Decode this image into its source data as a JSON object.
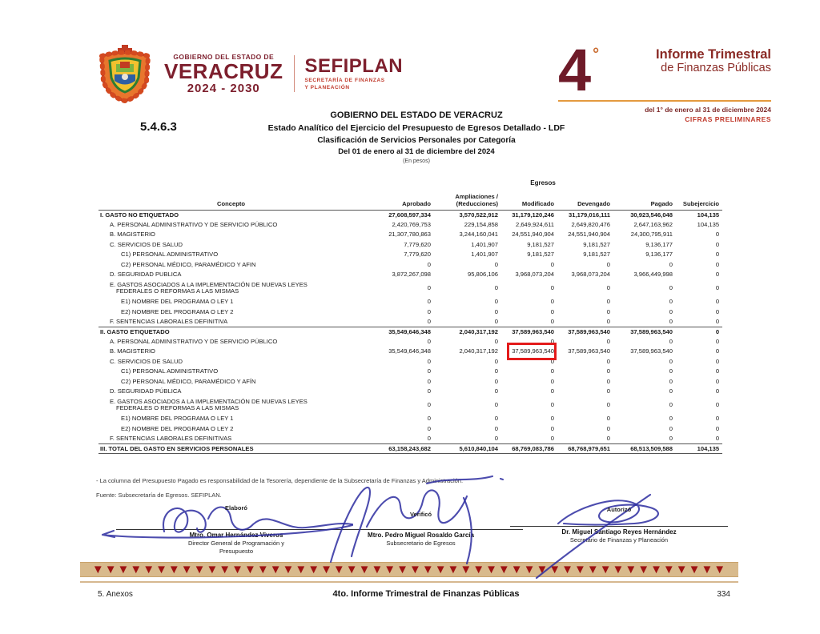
{
  "header": {
    "logo": {
      "gobierno_line": "GOBIERNO DEL ESTADO DE",
      "state_name": "VERACRUZ",
      "period": "2024 - 2030",
      "agency": "SEFIPLAN",
      "agency_sub1": "SECRETARÍA DE FINANZAS",
      "agency_sub2": "Y PLANEACIÓN"
    },
    "report_badge": {
      "number": "4",
      "degree": "°",
      "title_line1": "Informe Trimestral",
      "title_line2": "de Finanzas Públicas",
      "period": "del 1° de enero al 31 de diciembre 2024",
      "note": "CIFRAS PRELIMINARES"
    }
  },
  "title_block": {
    "section_number": "5.4.6.3",
    "line1": "GOBIERNO DEL ESTADO DE VERACRUZ",
    "line2": "Estado Analítico del Ejercicio del Presupuesto de Egresos Detallado - LDF",
    "line3": "Clasificación de Servicios Personales por Categoría",
    "line4": "Del 01 de enero al 31 de diciembre del 2024",
    "line5": "(En pesos)"
  },
  "table": {
    "group_header": "Egresos",
    "columns": [
      "Concepto",
      "Aprobado",
      "Ampliaciones /\n(Reducciones)",
      "Modificado",
      "Devengado",
      "Pagado",
      "Subejercicio"
    ],
    "rows": [
      {
        "label": "I. GASTO NO ETIQUETADO",
        "indent": 0,
        "bold": true,
        "values": [
          "27,608,597,334",
          "3,570,522,912",
          "31,179,120,246",
          "31,179,016,111",
          "30,923,546,048",
          "104,135"
        ]
      },
      {
        "label": "A. PERSONAL ADMINISTRATIVO Y DE SERVICIO PÚBLICO",
        "indent": 1,
        "values": [
          "2,420,769,753",
          "229,154,858",
          "2,649,924,611",
          "2,649,820,476",
          "2,647,163,962",
          "104,135"
        ]
      },
      {
        "label": "B. MAGISTERIO",
        "indent": 1,
        "values": [
          "21,307,780,863",
          "3,244,160,041",
          "24,551,940,904",
          "24,551,940,904",
          "24,300,795,911",
          "0"
        ]
      },
      {
        "label": "C. SERVICIOS DE SALUD",
        "indent": 1,
        "values": [
          "7,779,620",
          "1,401,907",
          "9,181,527",
          "9,181,527",
          "9,136,177",
          "0"
        ]
      },
      {
        "label": "C1) PERSONAL ADMINISTRATIVO",
        "indent": 2,
        "values": [
          "7,779,620",
          "1,401,907",
          "9,181,527",
          "9,181,527",
          "9,136,177",
          "0"
        ]
      },
      {
        "label": "C2) PERSONAL MÉDICO, PARAMÉDICO Y AFIN",
        "indent": 2,
        "values": [
          "0",
          "0",
          "0",
          "0",
          "0",
          "0"
        ]
      },
      {
        "label": "D. SEGURIDAD PUBLICA",
        "indent": 1,
        "values": [
          "3,872,267,098",
          "95,806,106",
          "3,968,073,204",
          "3,968,073,204",
          "3,966,449,998",
          "0"
        ]
      },
      {
        "label": "E. GASTOS ASOCIADOS A LA IMPLEMENTACIÓN DE NUEVAS LEYES",
        "label2": "FEDERALES O REFORMAS A LAS MISMAS",
        "indent": 1,
        "values": [
          "0",
          "0",
          "0",
          "0",
          "0",
          "0"
        ]
      },
      {
        "label": "E1) NOMBRE DEL PROGRAMA O LEY 1",
        "indent": 2,
        "values": [
          "0",
          "0",
          "0",
          "0",
          "0",
          "0"
        ]
      },
      {
        "label": "E2) NOMBRE DEL PROGRAMA O LEY 2",
        "indent": 2,
        "values": [
          "0",
          "0",
          "0",
          "0",
          "0",
          "0"
        ]
      },
      {
        "label": "F. SENTENCIAS LABORALES DEFINITIVA",
        "indent": 1,
        "values": [
          "0",
          "0",
          "0",
          "0",
          "0",
          "0"
        ]
      },
      {
        "label": "II. GASTO ETIQUETADO",
        "indent": 0,
        "bold": true,
        "rule_above": true,
        "values": [
          "35,549,646,348",
          "2,040,317,192",
          "37,589,963,540",
          "37,589,963,540",
          "37,589,963,540",
          "0"
        ]
      },
      {
        "label": "A. PERSONAL ADMINISTRATIVO Y DE SERVICIO PÚBLICO",
        "indent": 1,
        "values": [
          "0",
          "0",
          "0",
          "0",
          "0",
          "0"
        ]
      },
      {
        "label": "B. MAGISTERIO",
        "indent": 1,
        "highlight": 2,
        "values": [
          "35,549,646,348",
          "2,040,317,192",
          "37,589,963,540",
          "37,589,963,540",
          "37,589,963,540",
          "0"
        ]
      },
      {
        "label": "C. SERVICIOS DE SALUD",
        "indent": 1,
        "values": [
          "0",
          "0",
          "0",
          "0",
          "0",
          "0"
        ]
      },
      {
        "label": "C1) PERSONAL ADMINISTRATIVO",
        "indent": 2,
        "values": [
          "0",
          "0",
          "0",
          "0",
          "0",
          "0"
        ]
      },
      {
        "label": "C2) PERSONAL MÉDICO, PARAMÉDICO Y AFÍN",
        "indent": 2,
        "values": [
          "0",
          "0",
          "0",
          "0",
          "0",
          "0"
        ]
      },
      {
        "label": "D. SEGURIDAD PÚBLICA",
        "indent": 1,
        "values": [
          "0",
          "0",
          "0",
          "0",
          "0",
          "0"
        ]
      },
      {
        "label": "E. GASTOS ASOCIADOS A LA IMPLEMENTACIÓN DE NUEVAS LEYES",
        "label2": "FEDERALES O REFORMAS A LAS MISMAS",
        "indent": 1,
        "values": [
          "0",
          "0",
          "0",
          "0",
          "0",
          "0"
        ]
      },
      {
        "label": "E1) NOMBRE DEL PROGRAMA O LEY 1",
        "indent": 2,
        "values": [
          "0",
          "0",
          "0",
          "0",
          "0",
          "0"
        ]
      },
      {
        "label": "E2) NOMBRE DEL PROGRAMA O LEY 2",
        "indent": 2,
        "values": [
          "0",
          "0",
          "0",
          "0",
          "0",
          "0"
        ]
      },
      {
        "label": "F. SENTENCIAS LABORALES DEFINITIVAS",
        "indent": 1,
        "values": [
          "0",
          "0",
          "0",
          "0",
          "0",
          "0"
        ]
      },
      {
        "label": "III. TOTAL DEL GASTO EN SERVICIOS PERSONALES",
        "indent": 0,
        "bold": true,
        "rule_above": true,
        "rule_below": true,
        "values": [
          "63,158,243,682",
          "5,610,840,104",
          "68,769,083,786",
          "68,768,979,651",
          "68,513,509,588",
          "104,135"
        ]
      }
    ],
    "highlight_color": "#e31b1b"
  },
  "footnotes": {
    "note1": "- La columna del Presupuesto Pagado es responsabilidad de la Tesorería, dependiente de la Subsecretaría de Finanzas y Administración.",
    "note2": "Fuente: Subsecretaría de Egresos. SEFIPLAN."
  },
  "signatures": [
    {
      "role_label": "Elaboró",
      "name": "Mtro. Omar Hernández  Viveros",
      "title1": "Director General de Programación y",
      "title2": "Presupuesto"
    },
    {
      "role_label": "Verificó",
      "name": "Mtro. Pedro Miguel Rosaldo García",
      "title1": "Subsecretario de Egresos",
      "title2": ""
    },
    {
      "role_label": "Autorizó",
      "name": "Dr. Miguel Santiago Reyes Hernández",
      "title1": "Secretario de Finanzas y Planeación",
      "title2": ""
    }
  ],
  "footer": {
    "left": "5. Anexos",
    "center": "4to. Informe Trimestral de Finanzas Públicas",
    "page_number": "334"
  },
  "colors": {
    "maroon": "#7d1f2d",
    "badge_red": "#8a2a25",
    "accent_orange": "#e49a3f",
    "preliminary_red": "#c0392b",
    "highlight_box": "#e31b1b",
    "band_tan": "#d8ba8c",
    "band_triangle": "#9e1212",
    "signature_ink": "#2d2da0"
  }
}
